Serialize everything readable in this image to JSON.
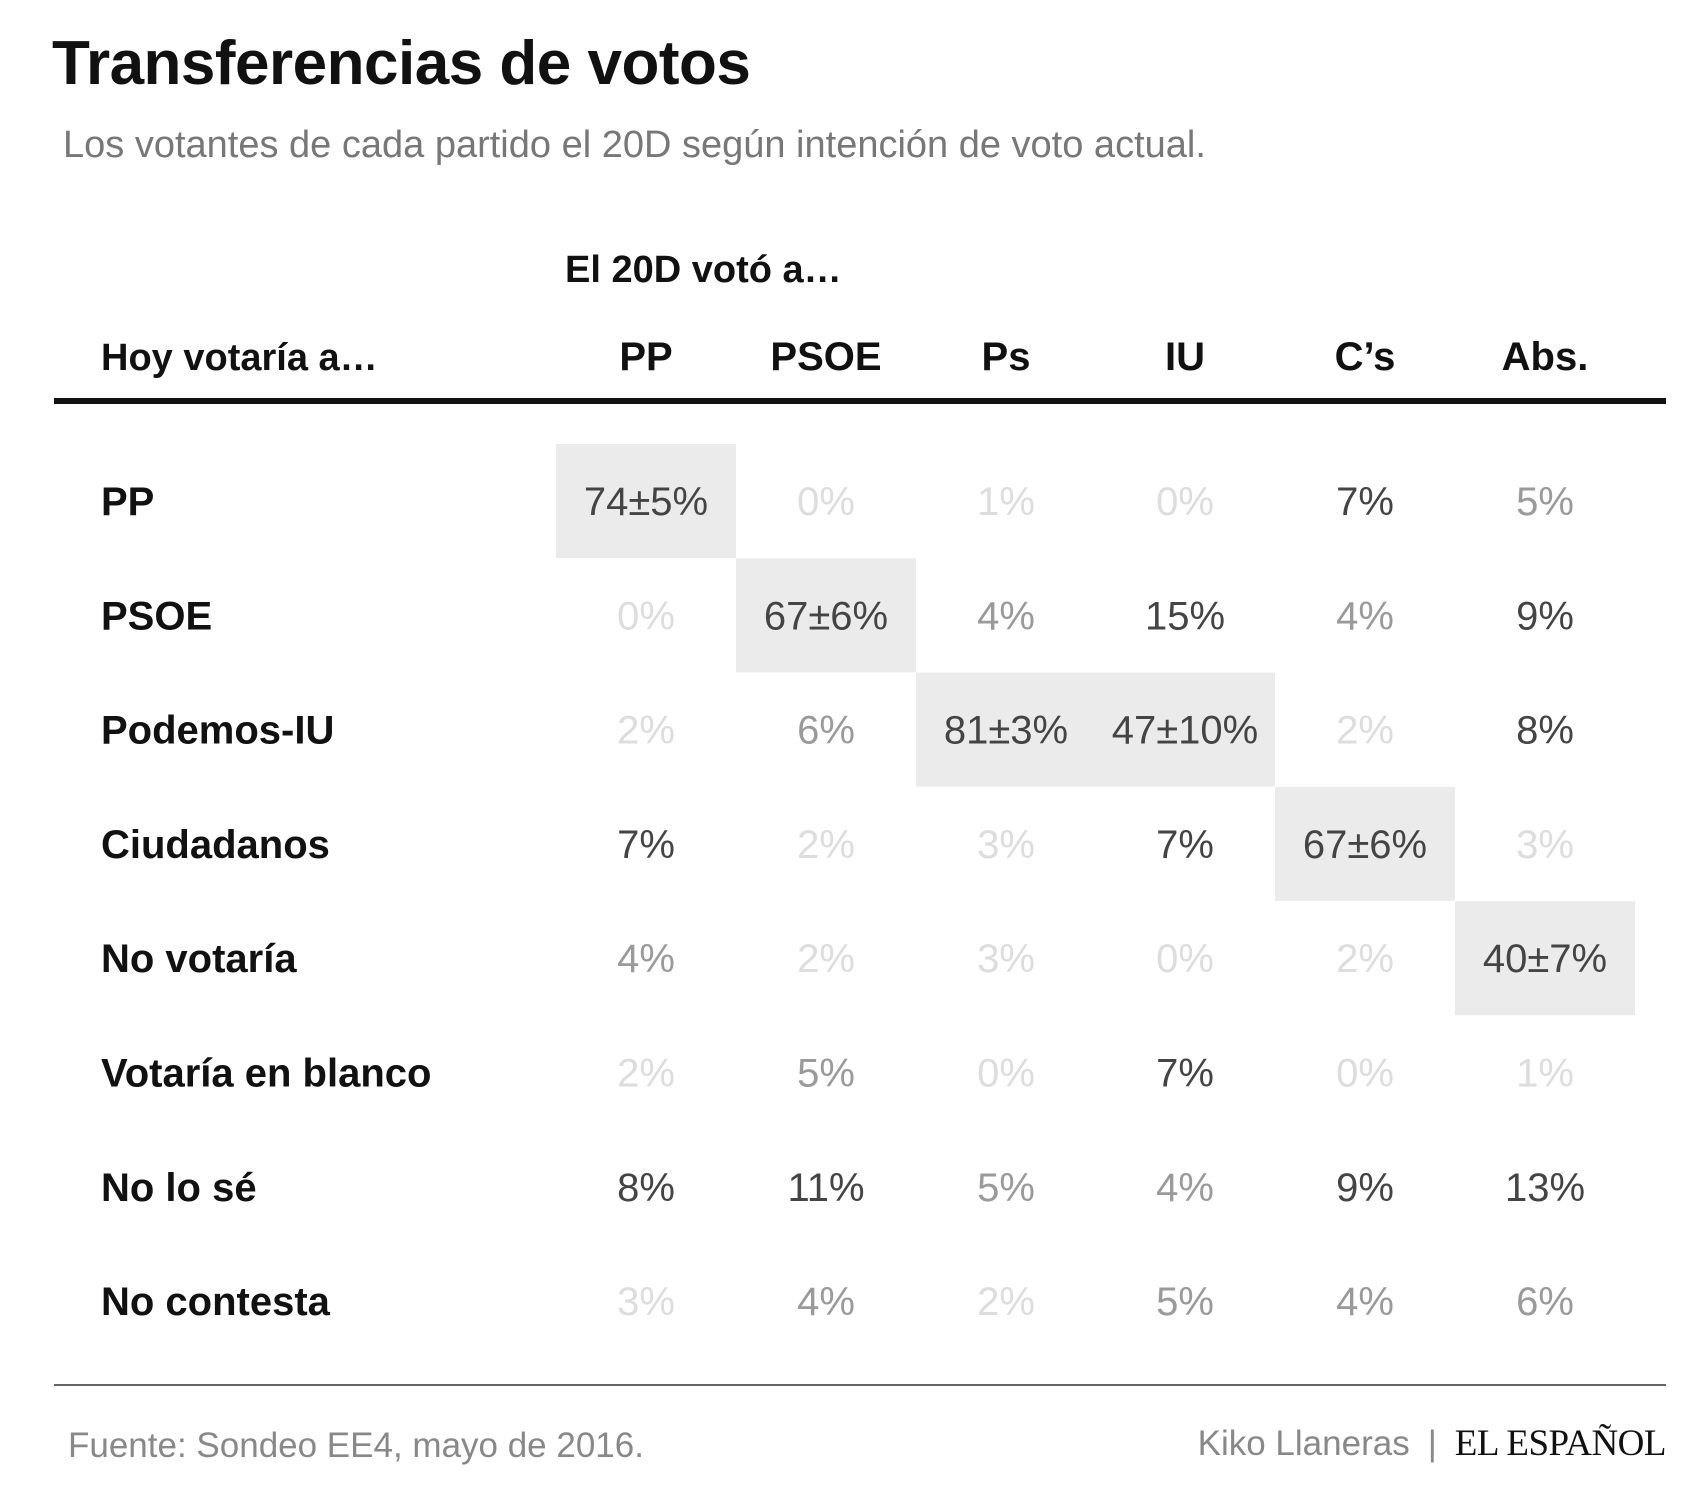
{
  "title": "Transferencias de votos",
  "subtitle": "Los votantes de cada partido el 20D según intención de voto actual.",
  "footer": {
    "source": "Fuente: Sondeo EE4, mayo de 2016.",
    "author": "Kiko Llaneras",
    "separator": "|",
    "brand": "EL ESPAÑOL"
  },
  "colors": {
    "text_dark": "#111111",
    "value_strong": "#444444",
    "value_medium": "#9a9a9a",
    "value_faint": "#dddddd",
    "highlight_bg": "#ebebeb",
    "rule": "#111111"
  },
  "chart_data": {
    "type": "table",
    "title": "Transferencias de votos",
    "subtitle": "Los votantes de cada partido el 20D según intención de voto actual.",
    "column_group_label": "El 20D votó a…",
    "row_header_label": "Hoy votaría a…",
    "columns": [
      "PP",
      "PSOE",
      "Ps",
      "IU",
      "C’s",
      "Abs."
    ],
    "rows": [
      {
        "label": "PP",
        "cells": [
          {
            "text": "74±5%",
            "value": 74,
            "highlight": true
          },
          {
            "text": "0%",
            "value": 0
          },
          {
            "text": "1%",
            "value": 1
          },
          {
            "text": "0%",
            "value": 0
          },
          {
            "text": "7%",
            "value": 7
          },
          {
            "text": "5%",
            "value": 5
          }
        ]
      },
      {
        "label": "PSOE",
        "cells": [
          {
            "text": "0%",
            "value": 0
          },
          {
            "text": "67±6%",
            "value": 67,
            "highlight": true
          },
          {
            "text": "4%",
            "value": 4
          },
          {
            "text": "15%",
            "value": 15
          },
          {
            "text": "4%",
            "value": 4
          },
          {
            "text": "9%",
            "value": 9
          }
        ]
      },
      {
        "label": "Podemos-IU",
        "cells": [
          {
            "text": "2%",
            "value": 2
          },
          {
            "text": "6%",
            "value": 6
          },
          {
            "text": "81±3%",
            "value": 81,
            "highlight": true
          },
          {
            "text": "47±10%",
            "value": 47,
            "highlight": true
          },
          {
            "text": "2%",
            "value": 2
          },
          {
            "text": "8%",
            "value": 8
          }
        ]
      },
      {
        "label": "Ciudadanos",
        "cells": [
          {
            "text": "7%",
            "value": 7
          },
          {
            "text": "2%",
            "value": 2
          },
          {
            "text": "3%",
            "value": 3
          },
          {
            "text": "7%",
            "value": 7
          },
          {
            "text": "67±6%",
            "value": 67,
            "highlight": true
          },
          {
            "text": "3%",
            "value": 3
          }
        ]
      },
      {
        "label": "No votaría",
        "cells": [
          {
            "text": "4%",
            "value": 4
          },
          {
            "text": "2%",
            "value": 2
          },
          {
            "text": "3%",
            "value": 3
          },
          {
            "text": "0%",
            "value": 0
          },
          {
            "text": "2%",
            "value": 2
          },
          {
            "text": "40±7%",
            "value": 40,
            "highlight": true
          }
        ]
      },
      {
        "label": "Votaría en blanco",
        "cells": [
          {
            "text": "2%",
            "value": 2
          },
          {
            "text": "5%",
            "value": 5
          },
          {
            "text": "0%",
            "value": 0
          },
          {
            "text": "7%",
            "value": 7
          },
          {
            "text": "0%",
            "value": 0
          },
          {
            "text": "1%",
            "value": 1
          }
        ]
      },
      {
        "label": "No lo sé",
        "cells": [
          {
            "text": "8%",
            "value": 8
          },
          {
            "text": "11%",
            "value": 11
          },
          {
            "text": "5%",
            "value": 5
          },
          {
            "text": "4%",
            "value": 4
          },
          {
            "text": "9%",
            "value": 9
          },
          {
            "text": "13%",
            "value": 13
          }
        ]
      },
      {
        "label": "No contesta",
        "cells": [
          {
            "text": "3%",
            "value": 3
          },
          {
            "text": "4%",
            "value": 4
          },
          {
            "text": "2%",
            "value": 2
          },
          {
            "text": "5%",
            "value": 5
          },
          {
            "text": "4%",
            "value": 4
          },
          {
            "text": "6%",
            "value": 6
          }
        ]
      }
    ]
  }
}
